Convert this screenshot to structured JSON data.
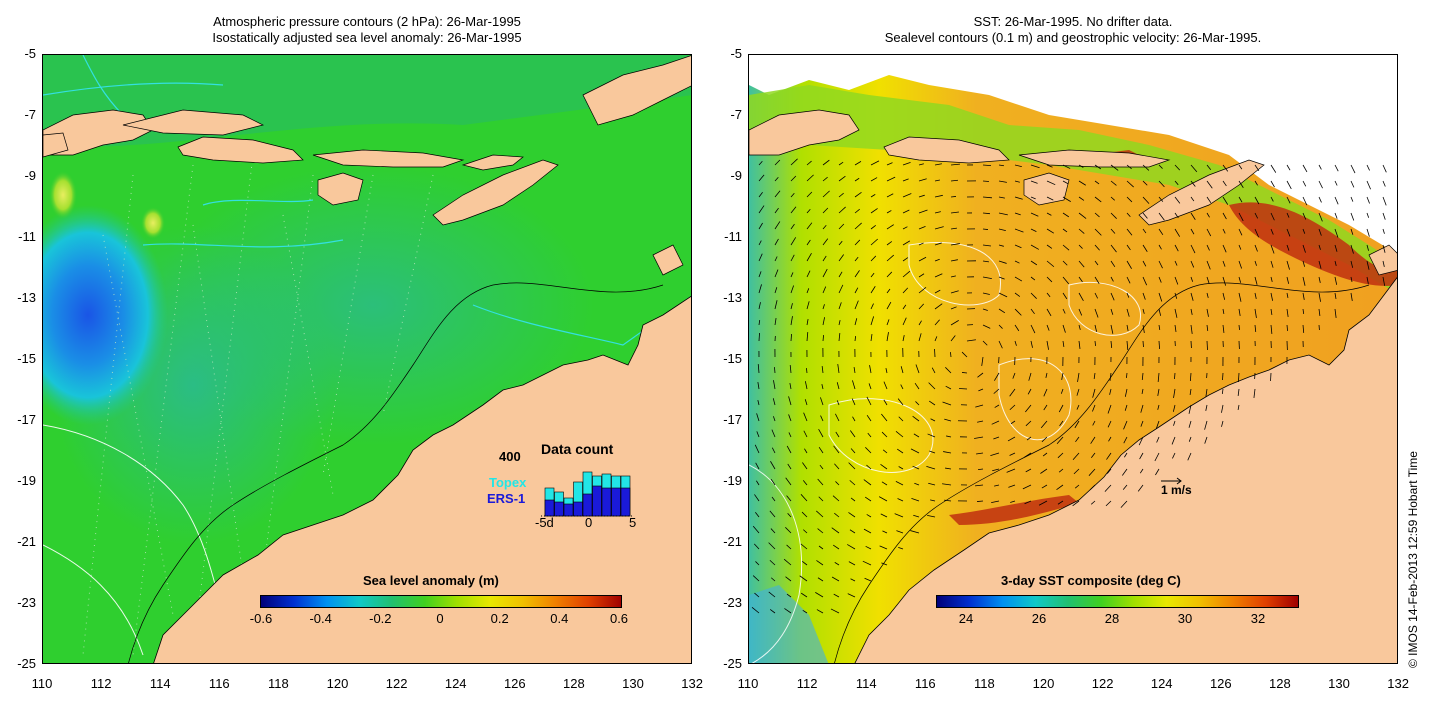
{
  "left_panel": {
    "title_line1": "Atmospheric pressure contours (2 hPa): 26-Mar-1995",
    "title_line2": "Isostatically adjusted sea level anomaly: 26-Mar-1995",
    "colorbar": {
      "title": "Sea level anomaly (m)",
      "ticks": [
        "-0.6",
        "-0.4",
        "-0.2",
        "0",
        "0.2",
        "0.4",
        "0.6"
      ]
    },
    "inset": {
      "title": "Data count",
      "y_max_label": "400",
      "legend_topex": "Topex",
      "legend_ers1": "ERS-1",
      "x_labels": [
        "-5d",
        "0",
        "5"
      ],
      "topex_color": "#22e6e6",
      "ers1_color": "#1a1ad9"
    }
  },
  "right_panel": {
    "title_line1": "SST: 26-Mar-1995. No drifter data.",
    "title_line2": "Sealevel contours (0.1 m) and geostrophic velocity: 26-Mar-1995.",
    "colorbar": {
      "title": "3-day SST composite (deg C)",
      "ticks": [
        "24",
        "26",
        "28",
        "30",
        "32"
      ]
    },
    "velocity_scale_label": "1 m/s"
  },
  "axes": {
    "y_ticks": [
      "-5",
      "-7",
      "-9",
      "-11",
      "-13",
      "-15",
      "-17",
      "-19",
      "-21",
      "-23",
      "-25"
    ],
    "x_ticks": [
      "110",
      "112",
      "114",
      "116",
      "118",
      "120",
      "122",
      "124",
      "126",
      "128",
      "130",
      "132"
    ]
  },
  "copyright": "© IMOS 14-Feb-2013 12:59 Hobart Time",
  "colors": {
    "land": "#f9c89c",
    "ocean_green": "#29cc29",
    "ocean_teal": "#25b58a",
    "sst_orange": "#f0a020",
    "sst_yellow": "#e6e600"
  }
}
